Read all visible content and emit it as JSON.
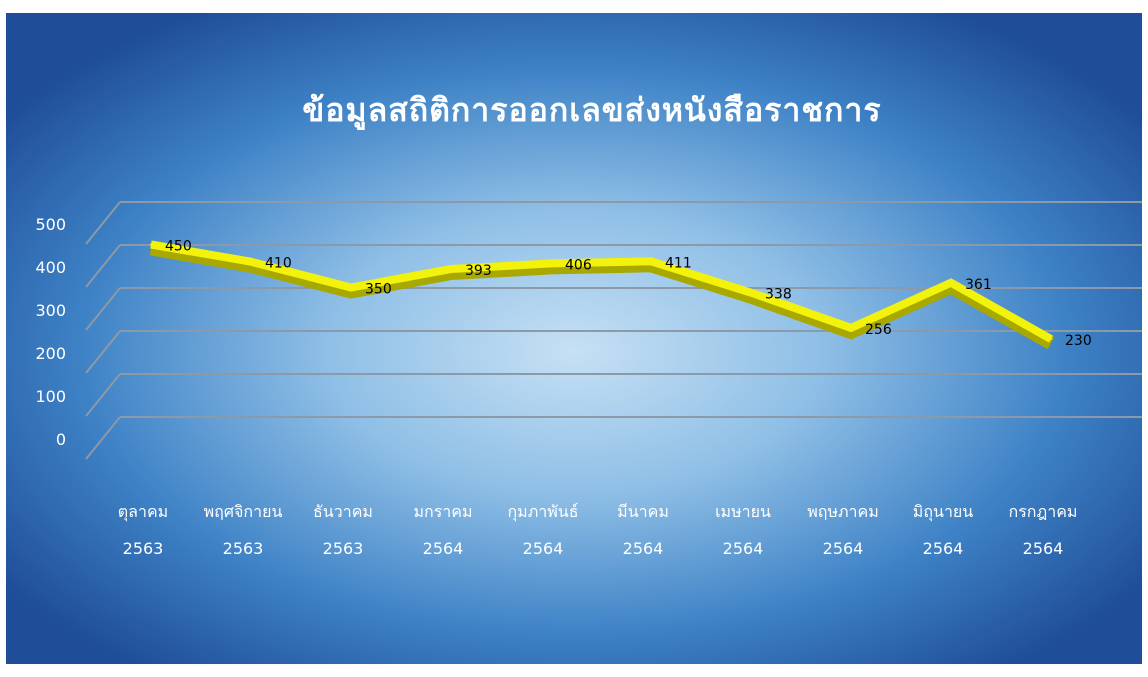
{
  "chart_data": {
    "type": "line",
    "title": "ข้อมูลสถิติการออกเลขส่งหนังสือราชการ",
    "categories": [
      [
        "ตุลาคม",
        "2563"
      ],
      [
        "พฤศจิกายน",
        "2563"
      ],
      [
        "ธันวาคม",
        "2563"
      ],
      [
        "มกราคม",
        "2564"
      ],
      [
        "กุมภาพันธ์",
        "2564"
      ],
      [
        "มีนาคม",
        "2564"
      ],
      [
        "เมษายน",
        "2564"
      ],
      [
        "พฤษภาคม",
        "2564"
      ],
      [
        "มิถุนายน",
        "2564"
      ],
      [
        "กรกฎาคม",
        "2564"
      ]
    ],
    "values": [
      450,
      410,
      350,
      393,
      406,
      411,
      338,
      256,
      361,
      230
    ],
    "ylim": [
      0,
      500
    ],
    "yticks": [
      0,
      100,
      200,
      300,
      400,
      500
    ],
    "grid": true,
    "legend": "none",
    "colors": {
      "line": "#f2f20a",
      "line_shadow": "#a8a800",
      "background_center": "#c8e1f5",
      "background_edge": "#1e4f9c",
      "title": "#ffffff",
      "labels": "#ffffff",
      "gridline": "#8c99a8"
    }
  }
}
